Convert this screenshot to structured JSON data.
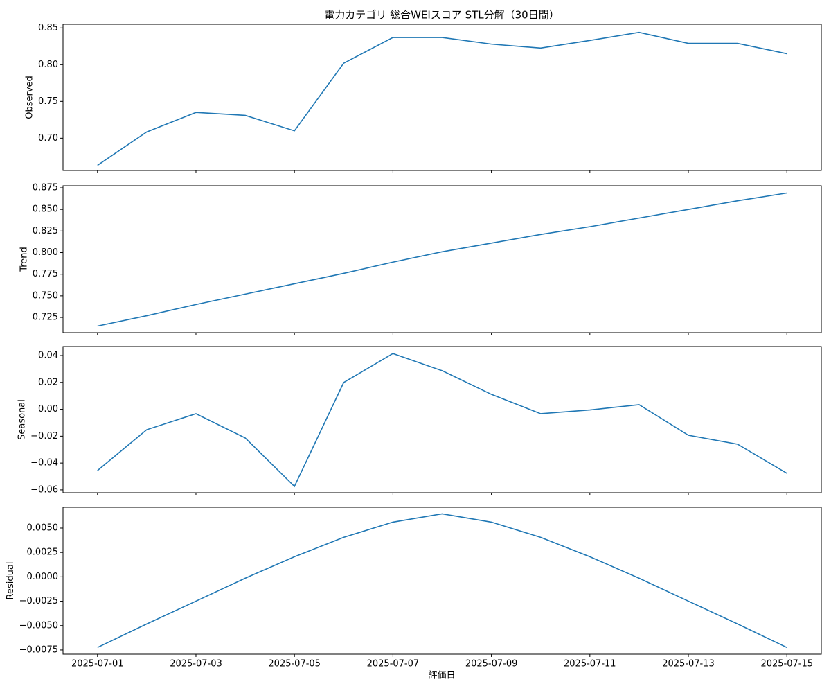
{
  "chart_data": {
    "type": "line",
    "title": "電力カテゴリ 総合WEIスコア STL分解（30日間）",
    "xlabel": "評価日",
    "x": [
      "2025-07-01",
      "2025-07-02",
      "2025-07-03",
      "2025-07-04",
      "2025-07-05",
      "2025-07-06",
      "2025-07-07",
      "2025-07-08",
      "2025-07-09",
      "2025-07-10",
      "2025-07-11",
      "2025-07-12",
      "2025-07-13",
      "2025-07-14",
      "2025-07-15"
    ],
    "xticks": [
      "2025-07-01",
      "2025-07-03",
      "2025-07-05",
      "2025-07-07",
      "2025-07-09",
      "2025-07-11",
      "2025-07-13",
      "2025-07-15"
    ],
    "panels": [
      {
        "ylabel": "Observed",
        "color": "#1f77b4",
        "values": [
          0.663,
          0.7085,
          0.735,
          0.731,
          0.71,
          0.802,
          0.837,
          0.837,
          0.828,
          0.8226,
          0.833,
          0.844,
          0.829,
          0.829,
          0.815
        ],
        "ylim": [
          0.656,
          0.855
        ],
        "yticks": [
          {
            "value": 0.7,
            "label": "0.70"
          },
          {
            "value": 0.75,
            "label": "0.75"
          },
          {
            "value": 0.8,
            "label": "0.80"
          },
          {
            "value": 0.85,
            "label": "0.85"
          }
        ]
      },
      {
        "ylabel": "Trend",
        "color": "#1f77b4",
        "values": [
          0.715,
          0.727,
          0.74,
          0.752,
          0.764,
          0.776,
          0.789,
          0.801,
          0.811,
          0.821,
          0.83,
          0.84,
          0.85,
          0.86,
          0.869
        ],
        "ylim": [
          0.7074,
          0.8774
        ],
        "yticks": [
          0.725,
          {
            "value": 0.75,
            "label": "0.750"
          },
          0.775,
          {
            "value": 0.8,
            "label": "0.800"
          },
          0.825,
          {
            "value": 0.85,
            "label": "0.850"
          },
          0.875
        ]
      },
      {
        "ylabel": "Seasonal",
        "color": "#1f77b4",
        "values": [
          -0.0456,
          -0.0152,
          -0.0033,
          -0.0213,
          -0.0574,
          0.0199,
          0.0415,
          0.0287,
          0.0111,
          -0.0033,
          -0.0005,
          0.0034,
          -0.0193,
          -0.026,
          -0.0476
        ],
        "ylim": [
          -0.0621,
          0.0467
        ],
        "yticks": [
          {
            "value": -0.06,
            "label": "−0.06"
          },
          {
            "value": -0.04,
            "label": "−0.04"
          },
          {
            "value": -0.02,
            "label": "−0.02"
          },
          {
            "value": 0,
            "label": "0.00"
          },
          0.02,
          0.04
        ]
      },
      {
        "ylabel": "Residual",
        "color": "#1f77b4",
        "values": [
          -0.00724,
          -0.00483,
          -0.00249,
          -0.00014,
          0.00206,
          0.00405,
          0.00561,
          0.00646,
          0.00561,
          0.00405,
          0.00206,
          -0.00014,
          -0.00249,
          -0.00483,
          -0.00724
        ],
        "ylim": [
          -0.00793,
          0.00713
        ],
        "yticks": [
          {
            "value": -0.0075,
            "label": "−0.0075"
          },
          {
            "value": -0.005,
            "label": "−0.0050"
          },
          {
            "value": -0.0025,
            "label": "−0.0025"
          },
          {
            "value": 0,
            "label": "0.0000"
          },
          {
            "value": 0.0025,
            "label": "0.0025"
          },
          {
            "value": 0.005,
            "label": "0.0050"
          }
        ]
      }
    ]
  }
}
